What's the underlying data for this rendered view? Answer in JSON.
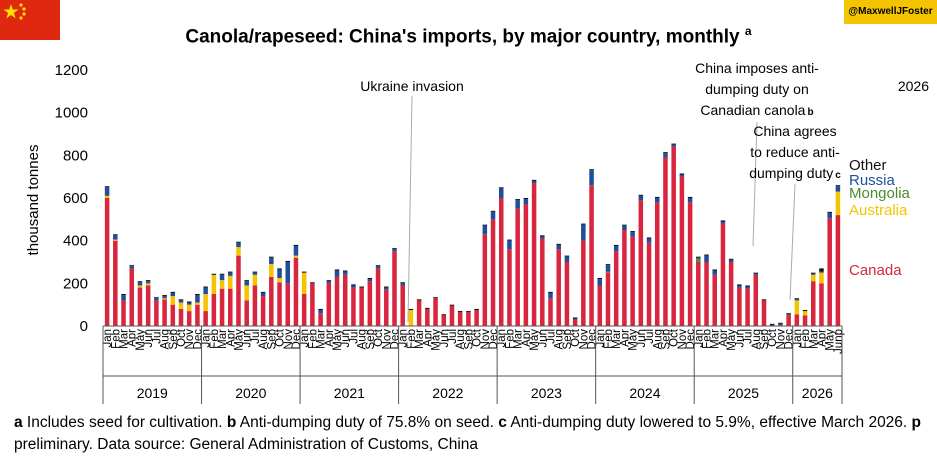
{
  "header": {
    "title": "Canola/rapeseed: China's imports, by major country, monthly",
    "title_note": "a",
    "handle": "@MaxwellJFoster"
  },
  "colors": {
    "Canada": "#d7263d",
    "Australia": "#f5c400",
    "Mongolia": "#4e8a2e",
    "Russia": "#1f4e9c",
    "Other": "#111111",
    "flag_red": "#de2910",
    "flag_star": "#ffde00"
  },
  "chart_data": {
    "type": "bar",
    "stacked": true,
    "ylabel": "thousand tonnes",
    "ylim": [
      0,
      1200
    ],
    "yticks": [
      0,
      200,
      400,
      600,
      800,
      1000,
      1200
    ],
    "month_labels": [
      "Jan",
      "Feb",
      "Mar",
      "Apr",
      "May",
      "Jun",
      "Jul",
      "Aug",
      "Sep",
      "Oct",
      "Nov",
      "Dec"
    ],
    "years": [
      "2019",
      "2020",
      "2021",
      "2022",
      "2023",
      "2024",
      "2025",
      "2026"
    ],
    "last_label_suffix": "p",
    "corner_label": "2026",
    "series": [
      {
        "name": "Canada",
        "values": [
          600,
          400,
          120,
          270,
          180,
          190,
          120,
          125,
          100,
          80,
          70,
          100,
          70,
          150,
          175,
          175,
          330,
          120,
          190,
          140,
          230,
          205,
          200,
          320,
          150,
          200,
          60,
          200,
          230,
          240,
          180,
          180,
          210,
          270,
          170,
          350,
          190,
          0,
          120,
          80,
          130,
          50,
          95,
          65,
          65,
          75,
          430,
          500,
          600,
          360,
          550,
          570,
          670,
          410,
          130,
          360,
          300,
          30,
          400,
          660,
          190,
          250,
          350,
          450,
          420,
          590,
          390,
          580,
          790,
          840,
          700,
          580,
          300,
          300,
          240,
          480,
          300,
          180,
          175,
          240,
          120,
          0,
          5,
          50,
          55,
          50,
          210,
          200,
          505,
          520
        ]
      },
      {
        "name": "Australia",
        "values": [
          10,
          5,
          0,
          0,
          10,
          10,
          0,
          5,
          40,
          30,
          30,
          10,
          80,
          90,
          40,
          60,
          40,
          70,
          50,
          0,
          60,
          20,
          0,
          10,
          100,
          0,
          0,
          0,
          0,
          0,
          0,
          0,
          0,
          0,
          0,
          0,
          0,
          75,
          0,
          0,
          0,
          0,
          0,
          0,
          0,
          0,
          0,
          0,
          0,
          0,
          0,
          0,
          0,
          0,
          0,
          0,
          0,
          0,
          0,
          0,
          0,
          0,
          0,
          0,
          0,
          0,
          0,
          0,
          0,
          0,
          0,
          0,
          0,
          0,
          0,
          0,
          0,
          0,
          0,
          0,
          0,
          0,
          0,
          0,
          65,
          20,
          30,
          50,
          0,
          110
        ]
      },
      {
        "name": "Mongolia",
        "values": [
          0,
          0,
          0,
          0,
          0,
          0,
          0,
          0,
          0,
          0,
          0,
          0,
          0,
          0,
          0,
          0,
          0,
          0,
          0,
          0,
          0,
          0,
          0,
          0,
          0,
          0,
          0,
          0,
          0,
          0,
          0,
          0,
          0,
          0,
          0,
          0,
          0,
          0,
          0,
          0,
          0,
          0,
          0,
          0,
          0,
          0,
          0,
          0,
          0,
          0,
          0,
          0,
          0,
          0,
          0,
          0,
          0,
          0,
          0,
          0,
          0,
          5,
          0,
          0,
          0,
          0,
          0,
          0,
          0,
          0,
          0,
          0,
          15,
          0,
          0,
          0,
          0,
          0,
          0,
          0,
          0,
          0,
          0,
          0,
          0,
          0,
          0,
          0,
          0,
          0
        ]
      },
      {
        "name": "Russia",
        "values": [
          40,
          20,
          25,
          10,
          15,
          10,
          10,
          10,
          15,
          10,
          10,
          35,
          30,
          0,
          25,
          15,
          20,
          20,
          10,
          15,
          30,
          40,
          100,
          45,
          0,
          0,
          15,
          10,
          30,
          15,
          10,
          0,
          10,
          10,
          10,
          10,
          10,
          0,
          0,
          0,
          0,
          0,
          0,
          0,
          0,
          0,
          40,
          35,
          45,
          40,
          40,
          25,
          10,
          10,
          25,
          20,
          25,
          5,
          75,
          70,
          30,
          30,
          25,
          20,
          20,
          20,
          20,
          20,
          20,
          10,
          10,
          20,
          5,
          30,
          20,
          10,
          10,
          10,
          10,
          5,
          0,
          5,
          5,
          5,
          5,
          0,
          5,
          5,
          25,
          25
        ]
      },
      {
        "name": "Other",
        "values": [
          5,
          5,
          5,
          5,
          5,
          5,
          5,
          5,
          5,
          5,
          5,
          5,
          5,
          5,
          5,
          5,
          5,
          5,
          5,
          5,
          5,
          5,
          5,
          5,
          5,
          5,
          5,
          5,
          5,
          5,
          5,
          5,
          5,
          5,
          5,
          5,
          5,
          5,
          5,
          5,
          5,
          5,
          5,
          5,
          5,
          5,
          5,
          5,
          5,
          5,
          5,
          5,
          5,
          5,
          5,
          5,
          5,
          5,
          5,
          5,
          5,
          5,
          5,
          5,
          5,
          5,
          5,
          5,
          5,
          5,
          5,
          5,
          5,
          5,
          5,
          5,
          5,
          5,
          5,
          5,
          5,
          5,
          5,
          5,
          5,
          5,
          5,
          15,
          5,
          5
        ]
      }
    ],
    "annotations": [
      {
        "text": "Ukraine invasion",
        "x_index": 37
      },
      {
        "text": "China imposes anti-\ndumping duty on\nCanadian canola",
        "note": "b",
        "x_index": 79
      },
      {
        "text": "China agrees\nto reduce anti-\ndumping duty",
        "note": "c",
        "x_index": 84
      }
    ],
    "legend": [
      "Other",
      "Russia",
      "Mongolia",
      "Australia",
      "Canada"
    ],
    "legend_position": "right"
  },
  "footnote": {
    "a_key": "a",
    "a_text": " Includes seed for cultivation. ",
    "b_key": "b",
    "b_text": " Anti-dumping duty of 75.8% on seed. ",
    "c_key": "c",
    "c_text": " Anti-dumping duty lowered to 5.9%, effective March 2026. ",
    "p_key": "p",
    "p_text": " preliminary. Data source: General  Administration of Customs, China"
  }
}
